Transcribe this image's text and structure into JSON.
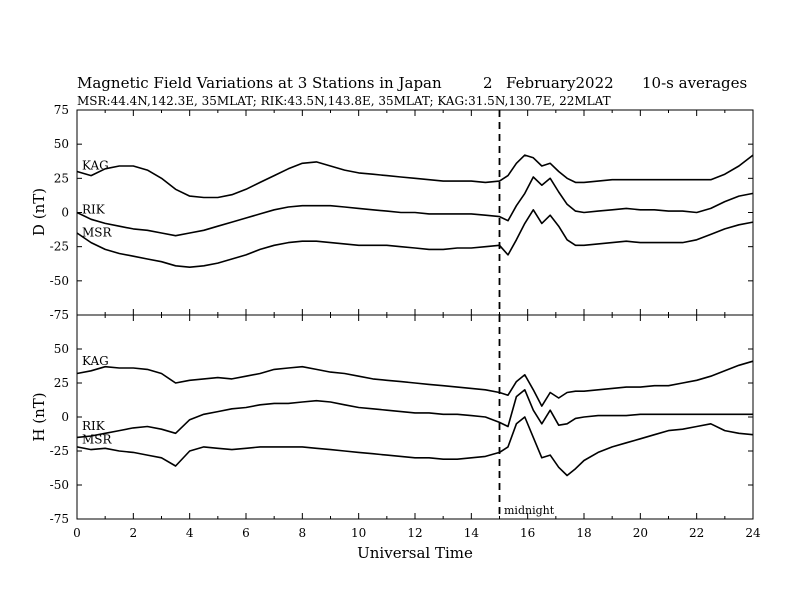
{
  "header": {
    "title": "Magnetic Field Variations at 3 Stations in Japan",
    "day": "2",
    "month_year": "February2022",
    "averaging": "10-s averages",
    "stations": "MSR:44.4N,142.3E, 35MLAT;  RIK:43.5N,143.8E, 35MLAT;  KAG:31.5N,130.7E, 22MLAT"
  },
  "midnight_label": "midnight",
  "colors": {
    "trace": "#000000",
    "background": "#ffffff"
  },
  "chart_data": [
    {
      "type": "line",
      "panel": "D",
      "ylabel": "D (nT)",
      "ylim": [
        -75,
        75
      ],
      "yticks": [
        "75",
        "50",
        "25",
        "0",
        "-25",
        "-50",
        "-75"
      ],
      "xlim": [
        0,
        24
      ],
      "midnight_ut": 15,
      "series": [
        {
          "name": "KAG",
          "x": [
            0,
            0.5,
            1,
            1.5,
            2,
            2.5,
            3,
            3.5,
            4,
            4.5,
            5,
            5.5,
            6,
            6.5,
            7,
            7.5,
            8,
            8.5,
            9,
            9.5,
            10,
            10.5,
            11,
            11.5,
            12,
            12.5,
            13,
            13.5,
            14,
            14.5,
            15,
            15.3,
            15.6,
            15.9,
            16.2,
            16.5,
            16.8,
            17.1,
            17.4,
            17.7,
            18,
            18.5,
            19,
            19.5,
            20,
            20.5,
            21,
            21.5,
            22,
            22.5,
            23,
            23.5,
            24
          ],
          "y": [
            30,
            27,
            32,
            34,
            34,
            31,
            25,
            17,
            12,
            11,
            11,
            13,
            17,
            22,
            27,
            32,
            36,
            37,
            34,
            31,
            29,
            28,
            27,
            26,
            25,
            24,
            23,
            23,
            23,
            22,
            23,
            27,
            36,
            42,
            40,
            34,
            36,
            30,
            25,
            22,
            22,
            23,
            24,
            24,
            24,
            24,
            24,
            24,
            24,
            24,
            28,
            34,
            42
          ]
        },
        {
          "name": "RIK",
          "x": [
            0,
            0.5,
            1,
            1.5,
            2,
            2.5,
            3,
            3.5,
            4,
            4.5,
            5,
            5.5,
            6,
            6.5,
            7,
            7.5,
            8,
            8.5,
            9,
            9.5,
            10,
            10.5,
            11,
            11.5,
            12,
            12.5,
            13,
            13.5,
            14,
            14.5,
            15,
            15.3,
            15.6,
            15.9,
            16.2,
            16.5,
            16.8,
            17.1,
            17.4,
            17.7,
            18,
            18.5,
            19,
            19.5,
            20,
            20.5,
            21,
            21.5,
            22,
            22.5,
            23,
            23.5,
            24
          ],
          "y": [
            0,
            -5,
            -8,
            -10,
            -12,
            -13,
            -15,
            -17,
            -15,
            -13,
            -10,
            -7,
            -4,
            -1,
            2,
            4,
            5,
            5,
            5,
            4,
            3,
            2,
            1,
            0,
            0,
            -1,
            -1,
            -1,
            -1,
            -2,
            -3,
            -6,
            5,
            14,
            26,
            20,
            25,
            15,
            6,
            1,
            0,
            1,
            2,
            3,
            2,
            2,
            1,
            1,
            0,
            3,
            8,
            12,
            14
          ]
        },
        {
          "name": "MSR",
          "x": [
            0,
            0.5,
            1,
            1.5,
            2,
            2.5,
            3,
            3.5,
            4,
            4.5,
            5,
            5.5,
            6,
            6.5,
            7,
            7.5,
            8,
            8.5,
            9,
            9.5,
            10,
            10.5,
            11,
            11.5,
            12,
            12.5,
            13,
            13.5,
            14,
            14.5,
            15,
            15.3,
            15.6,
            15.9,
            16.2,
            16.5,
            16.8,
            17.1,
            17.4,
            17.7,
            18,
            18.5,
            19,
            19.5,
            20,
            20.5,
            21,
            21.5,
            22,
            22.5,
            23,
            23.5,
            24
          ],
          "y": [
            -15,
            -22,
            -27,
            -30,
            -32,
            -34,
            -36,
            -39,
            -40,
            -39,
            -37,
            -34,
            -31,
            -27,
            -24,
            -22,
            -21,
            -21,
            -22,
            -23,
            -24,
            -24,
            -24,
            -25,
            -26,
            -27,
            -27,
            -26,
            -26,
            -25,
            -24,
            -31,
            -20,
            -8,
            2,
            -8,
            -2,
            -10,
            -20,
            -24,
            -24,
            -23,
            -22,
            -21,
            -22,
            -22,
            -22,
            -22,
            -20,
            -16,
            -12,
            -9,
            -7
          ]
        }
      ]
    },
    {
      "type": "line",
      "panel": "H",
      "ylabel": "H (nT)",
      "ylim": [
        -75,
        75
      ],
      "yticks": [
        "50",
        "25",
        "0",
        "-25",
        "-50",
        "-75"
      ],
      "xlabel": "Universal Time",
      "xlim": [
        0,
        24
      ],
      "xticks": [
        "0",
        "2",
        "4",
        "6",
        "8",
        "10",
        "12",
        "14",
        "16",
        "18",
        "20",
        "22",
        "24"
      ],
      "midnight_ut": 15,
      "series": [
        {
          "name": "KAG",
          "x": [
            0,
            0.5,
            1,
            1.5,
            2,
            2.5,
            3,
            3.5,
            4,
            4.5,
            5,
            5.5,
            6,
            6.5,
            7,
            7.5,
            8,
            8.5,
            9,
            9.5,
            10,
            10.5,
            11,
            11.5,
            12,
            12.5,
            13,
            13.5,
            14,
            14.5,
            15,
            15.3,
            15.6,
            15.9,
            16.2,
            16.5,
            16.8,
            17.1,
            17.4,
            17.7,
            18,
            18.5,
            19,
            19.5,
            20,
            20.5,
            21,
            21.5,
            22,
            22.5,
            23,
            23.5,
            24
          ],
          "y": [
            32,
            34,
            37,
            36,
            36,
            35,
            32,
            25,
            27,
            28,
            29,
            28,
            30,
            32,
            35,
            36,
            37,
            35,
            33,
            32,
            30,
            28,
            27,
            26,
            25,
            24,
            23,
            22,
            21,
            20,
            18,
            16,
            26,
            31,
            20,
            8,
            18,
            14,
            18,
            19,
            19,
            20,
            21,
            22,
            22,
            23,
            23,
            25,
            27,
            30,
            34,
            38,
            41
          ]
        },
        {
          "name": "RIK",
          "x": [
            0,
            0.5,
            1,
            1.5,
            2,
            2.5,
            3,
            3.5,
            4,
            4.5,
            5,
            5.5,
            6,
            6.5,
            7,
            7.5,
            8,
            8.5,
            9,
            9.5,
            10,
            10.5,
            11,
            11.5,
            12,
            12.5,
            13,
            13.5,
            14,
            14.5,
            15,
            15.3,
            15.6,
            15.9,
            16.2,
            16.5,
            16.8,
            17.1,
            17.4,
            17.7,
            18,
            18.5,
            19,
            19.5,
            20,
            20.5,
            21,
            21.5,
            22,
            22.5,
            23,
            23.5,
            24
          ],
          "y": [
            -15,
            -14,
            -12,
            -10,
            -8,
            -7,
            -9,
            -12,
            -2,
            2,
            4,
            6,
            7,
            9,
            10,
            10,
            11,
            12,
            11,
            9,
            7,
            6,
            5,
            4,
            3,
            3,
            2,
            2,
            1,
            0,
            -4,
            -7,
            15,
            20,
            5,
            -5,
            5,
            -6,
            -5,
            -1,
            0,
            1,
            1,
            1,
            2,
            2,
            2,
            2,
            2,
            2,
            2,
            2,
            2
          ]
        },
        {
          "name": "MSR",
          "x": [
            0,
            0.5,
            1,
            1.5,
            2,
            2.5,
            3,
            3.5,
            4,
            4.5,
            5,
            5.5,
            6,
            6.5,
            7,
            7.5,
            8,
            8.5,
            9,
            9.5,
            10,
            10.5,
            11,
            11.5,
            12,
            12.5,
            13,
            13.5,
            14,
            14.5,
            15,
            15.3,
            15.6,
            15.9,
            16.2,
            16.5,
            16.8,
            17.1,
            17.4,
            17.7,
            18,
            18.5,
            19,
            19.5,
            20,
            20.5,
            21,
            21.5,
            22,
            22.5,
            23,
            23.5,
            24
          ],
          "y": [
            -22,
            -24,
            -23,
            -25,
            -26,
            -28,
            -30,
            -36,
            -25,
            -22,
            -23,
            -24,
            -23,
            -22,
            -22,
            -22,
            -22,
            -23,
            -24,
            -25,
            -26,
            -27,
            -28,
            -29,
            -30,
            -30,
            -31,
            -31,
            -30,
            -29,
            -26,
            -22,
            -5,
            0,
            -15,
            -30,
            -28,
            -37,
            -43,
            -38,
            -32,
            -26,
            -22,
            -19,
            -16,
            -13,
            -10,
            -9,
            -7,
            -5,
            -10,
            -12,
            -13
          ]
        }
      ]
    }
  ]
}
